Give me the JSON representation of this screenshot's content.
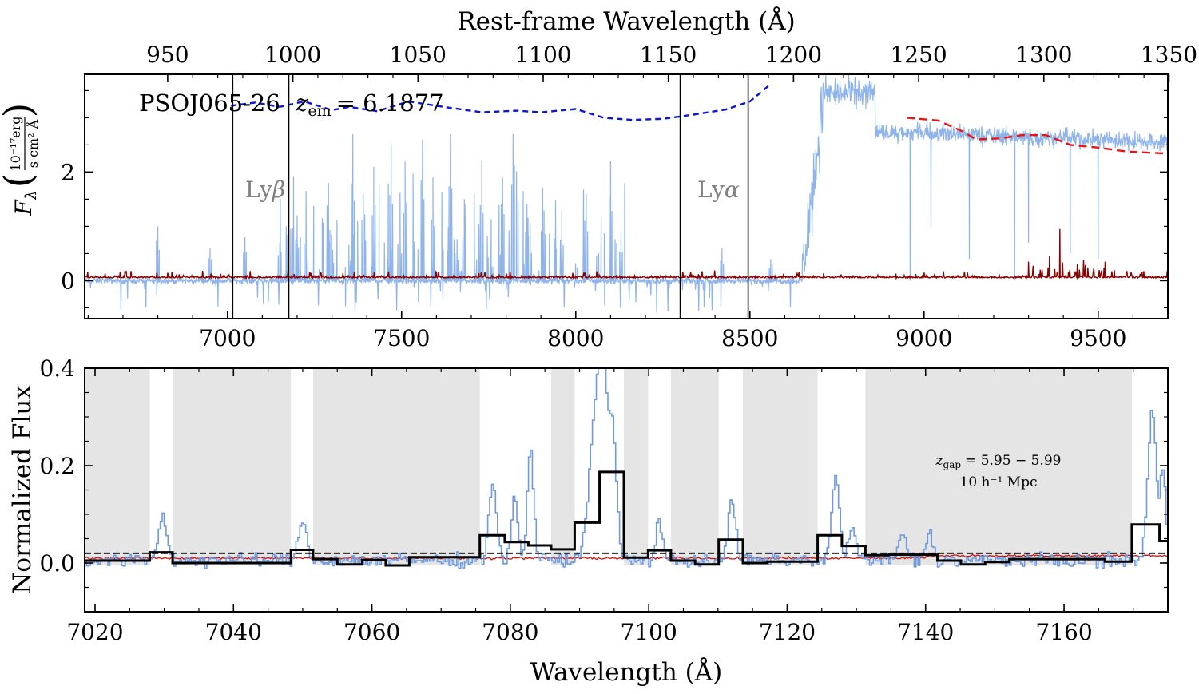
{
  "chart_data": [
    {
      "panel": "top",
      "type": "line",
      "top_axis": {
        "label": "Rest-frame Wavelength (Å)",
        "ticks": [
          950,
          1000,
          1050,
          1100,
          1150,
          1200,
          1250,
          1300,
          1350
        ],
        "tick_labels": [
          "950",
          "1000",
          "1050",
          "1100",
          "1150",
          "1200",
          "1250",
          "1300",
          "1350"
        ]
      },
      "x_axis": {
        "label": "",
        "range": [
          6590,
          9700
        ],
        "ticks": [
          7000,
          7500,
          8000,
          8500,
          9000,
          9500
        ],
        "tick_labels": [
          "7000",
          "7500",
          "8000",
          "8500",
          "9000",
          "9500"
        ]
      },
      "y_axis": {
        "label_main": "F",
        "label_sub": "λ",
        "unit_num": "10⁻¹⁷erg",
        "unit_den": "s cm² Å",
        "range": [
          -0.7,
          3.8
        ],
        "ticks": [
          0,
          2
        ],
        "tick_labels": [
          "0",
          "2"
        ]
      },
      "annotation": {
        "object": "PSOJ065-26",
        "z_symbol": "z",
        "z_sub": "em",
        "z_value": "= 6.1877"
      },
      "vertical_lines": [
        {
          "x": 7015
        },
        {
          "x": 7176,
          "label": "Lyβ",
          "label_main": "Ly",
          "label_greek": "β"
        },
        {
          "x": 8300
        },
        {
          "x": 8495,
          "label": "Lyα",
          "label_main": "Ly",
          "label_greek": "α"
        }
      ],
      "series": [
        {
          "style": "observed flux",
          "color": "#8fb4ec",
          "segments": [
            {
              "x_range": [
                6590,
                8650
              ],
              "base": 0.0,
              "noise": 0.05
            },
            {
              "x_range": [
                8650,
                8710
              ],
              "base": 1.5,
              "noise": 0.6
            },
            {
              "x_range": [
                8710,
                8860
              ],
              "base": 3.45,
              "noise": 0.25
            },
            {
              "x_range": [
                8860,
                9700
              ],
              "base": 2.75,
              "noise": 0.15
            }
          ],
          "spikes": [
            {
              "x": 6800,
              "y": 1.0
            },
            {
              "x": 6950,
              "y": 0.6
            },
            {
              "x": 7050,
              "y": 0.8
            },
            {
              "x": 7150,
              "y": 0.7
            },
            {
              "x": 7200,
              "y": 1.2
            },
            {
              "x": 7290,
              "y": 1.8
            },
            {
              "x": 7360,
              "y": 2.7
            },
            {
              "x": 7390,
              "y": 1.6
            },
            {
              "x": 7420,
              "y": 2.1
            },
            {
              "x": 7470,
              "y": 2.5
            },
            {
              "x": 7510,
              "y": 2.2
            },
            {
              "x": 7560,
              "y": 2.6
            },
            {
              "x": 7590,
              "y": 1.9
            },
            {
              "x": 7640,
              "y": 2.7
            },
            {
              "x": 7680,
              "y": 1.5
            },
            {
              "x": 7730,
              "y": 2.2
            },
            {
              "x": 7790,
              "y": 1.9
            },
            {
              "x": 7820,
              "y": 2.7
            },
            {
              "x": 7860,
              "y": 1.4
            },
            {
              "x": 7905,
              "y": 1.7
            },
            {
              "x": 7960,
              "y": 1.3
            },
            {
              "x": 8030,
              "y": 1.6
            },
            {
              "x": 8100,
              "y": 2.2
            },
            {
              "x": 8130,
              "y": 0.9
            },
            {
              "x": 8420,
              "y": 0.6
            },
            {
              "x": 8560,
              "y": 0.4
            }
          ],
          "dips": [
            {
              "x": 8960,
              "y": 0.0
            },
            {
              "x": 9020,
              "y": 1.0
            },
            {
              "x": 9130,
              "y": 0.4
            },
            {
              "x": 9260,
              "y": 0.0
            },
            {
              "x": 9300,
              "y": 0.7
            },
            {
              "x": 9420,
              "y": 0.5
            },
            {
              "x": 9500,
              "y": 0.4
            }
          ]
        },
        {
          "style": "noise spectrum",
          "color": "#8b0000",
          "level": 0.05,
          "peaks": [
            {
              "x": 9300,
              "y": 0.35
            },
            {
              "x": 9360,
              "y": 0.45
            },
            {
              "x": 9390,
              "y": 0.95
            },
            {
              "x": 9440,
              "y": 0.3
            },
            {
              "x": 9520,
              "y": 0.35
            },
            {
              "x": 7600,
              "y": 0.15
            }
          ]
        },
        {
          "style": "blue dashed continuum model",
          "color": "#0a16d8",
          "points": [
            [
              7010,
              3.22
            ],
            [
              7080,
              3.28
            ],
            [
              7150,
              3.2
            ],
            [
              7220,
              3.3
            ],
            [
              7300,
              3.14
            ],
            [
              7350,
              3.2
            ],
            [
              7430,
              3.12
            ],
            [
              7520,
              3.3
            ],
            [
              7620,
              3.2
            ],
            [
              7730,
              3.1
            ],
            [
              7830,
              3.13
            ],
            [
              7900,
              3.1
            ],
            [
              8000,
              3.16
            ],
            [
              8080,
              3.0
            ],
            [
              8160,
              2.96
            ],
            [
              8250,
              2.98
            ],
            [
              8330,
              3.05
            ],
            [
              8430,
              3.15
            ],
            [
              8500,
              3.3
            ],
            [
              8560,
              3.62
            ]
          ]
        },
        {
          "style": "red dashed continuum model",
          "color": "#ee1111",
          "points": [
            [
              8950,
              3.0
            ],
            [
              9040,
              2.95
            ],
            [
              9110,
              2.75
            ],
            [
              9150,
              2.6
            ],
            [
              9220,
              2.62
            ],
            [
              9280,
              2.68
            ],
            [
              9350,
              2.68
            ],
            [
              9420,
              2.5
            ],
            [
              9500,
              2.45
            ],
            [
              9580,
              2.38
            ],
            [
              9700,
              2.34
            ]
          ]
        }
      ]
    },
    {
      "panel": "bottom",
      "type": "line",
      "x_axis": {
        "label": "Wavelength (Å)",
        "range": [
          7018.5,
          7175
        ],
        "ticks": [
          7020,
          7040,
          7060,
          7080,
          7100,
          7120,
          7140,
          7160
        ],
        "tick_labels": [
          "7020",
          "7040",
          "7060",
          "7080",
          "7100",
          "7120",
          "7140",
          "7160"
        ]
      },
      "y_axis": {
        "label": "Normalized Flux",
        "range": [
          -0.1,
          0.4
        ],
        "ticks": [
          0.0,
          0.2,
          0.4
        ],
        "tick_labels": [
          "0.0",
          "0.2",
          "0.4"
        ]
      },
      "annotation": {
        "line1_symbol": "z",
        "line1_sub": "gap",
        "line1_value": "= 5.95 − 5.99",
        "line2": "10 h⁻¹ Mpc"
      },
      "gray_regions": [
        [
          7018.5,
          7027.9
        ],
        [
          7031.2,
          7048.3
        ],
        [
          7051.5,
          7075.6
        ],
        [
          7085.9,
          7089.3
        ],
        [
          7096.4,
          7099.9
        ],
        [
          7103.2,
          7110.1
        ],
        [
          7113.6,
          7124.4
        ],
        [
          7131.3,
          7169.8
        ]
      ],
      "reference_level": 0.02,
      "binned_flux": {
        "color": "#000000",
        "edges": [
          7018.5,
          7027.9,
          7031.2,
          7048.3,
          7051.5,
          7055,
          7058.6,
          7062,
          7065.4,
          7075.6,
          7079.2,
          7082.6,
          7085.9,
          7089.3,
          7092.9,
          7096.4,
          7099.9,
          7103.2,
          7106.7,
          7110.1,
          7113.6,
          7117.1,
          7124.4,
          7127.9,
          7131.3,
          7134.7,
          7141.7,
          7145.1,
          7148.6,
          7152.1,
          7162.4,
          7165.9,
          7169.8,
          7173.8,
          7175
        ],
        "values": [
          0.005,
          0.022,
          0.0,
          0.027,
          0.008,
          -0.003,
          0.006,
          -0.005,
          0.012,
          0.057,
          0.043,
          0.036,
          0.028,
          0.083,
          0.187,
          0.011,
          0.026,
          0.005,
          -0.003,
          0.048,
          0.0,
          0.003,
          0.057,
          0.035,
          0.016,
          0.017,
          0.005,
          -0.003,
          0.002,
          0.008,
          0.008,
          0.003,
          0.079,
          0.045
        ]
      },
      "observed_flux": {
        "color": "#6d9ae0",
        "base": 0.005,
        "noise": 0.012,
        "peaks": [
          {
            "x": 7029.6,
            "y": 0.09,
            "w": 0.6
          },
          {
            "x": 7049.9,
            "y": 0.08,
            "w": 0.6
          },
          {
            "x": 7077.3,
            "y": 0.16,
            "w": 0.55
          },
          {
            "x": 7080.5,
            "y": 0.12,
            "w": 0.5
          },
          {
            "x": 7082.8,
            "y": 0.23,
            "w": 0.45
          },
          {
            "x": 7092.1,
            "y": 0.28,
            "w": 0.9
          },
          {
            "x": 7093.2,
            "y": 0.38,
            "w": 0.5
          },
          {
            "x": 7094.6,
            "y": 0.28,
            "w": 0.6
          },
          {
            "x": 7101.4,
            "y": 0.08,
            "w": 0.5
          },
          {
            "x": 7111.9,
            "y": 0.13,
            "w": 0.5
          },
          {
            "x": 7126.9,
            "y": 0.17,
            "w": 0.55
          },
          {
            "x": 7129.3,
            "y": 0.07,
            "w": 0.5
          },
          {
            "x": 7136.6,
            "y": 0.06,
            "w": 0.5
          },
          {
            "x": 7140.4,
            "y": 0.06,
            "w": 0.5
          },
          {
            "x": 7172.6,
            "y": 0.31,
            "w": 0.6
          },
          {
            "x": 7174.2,
            "y": 0.18,
            "w": 0.4
          }
        ]
      },
      "noise_spectrum": {
        "color": "#cc1111",
        "level": 0.01
      }
    }
  ]
}
